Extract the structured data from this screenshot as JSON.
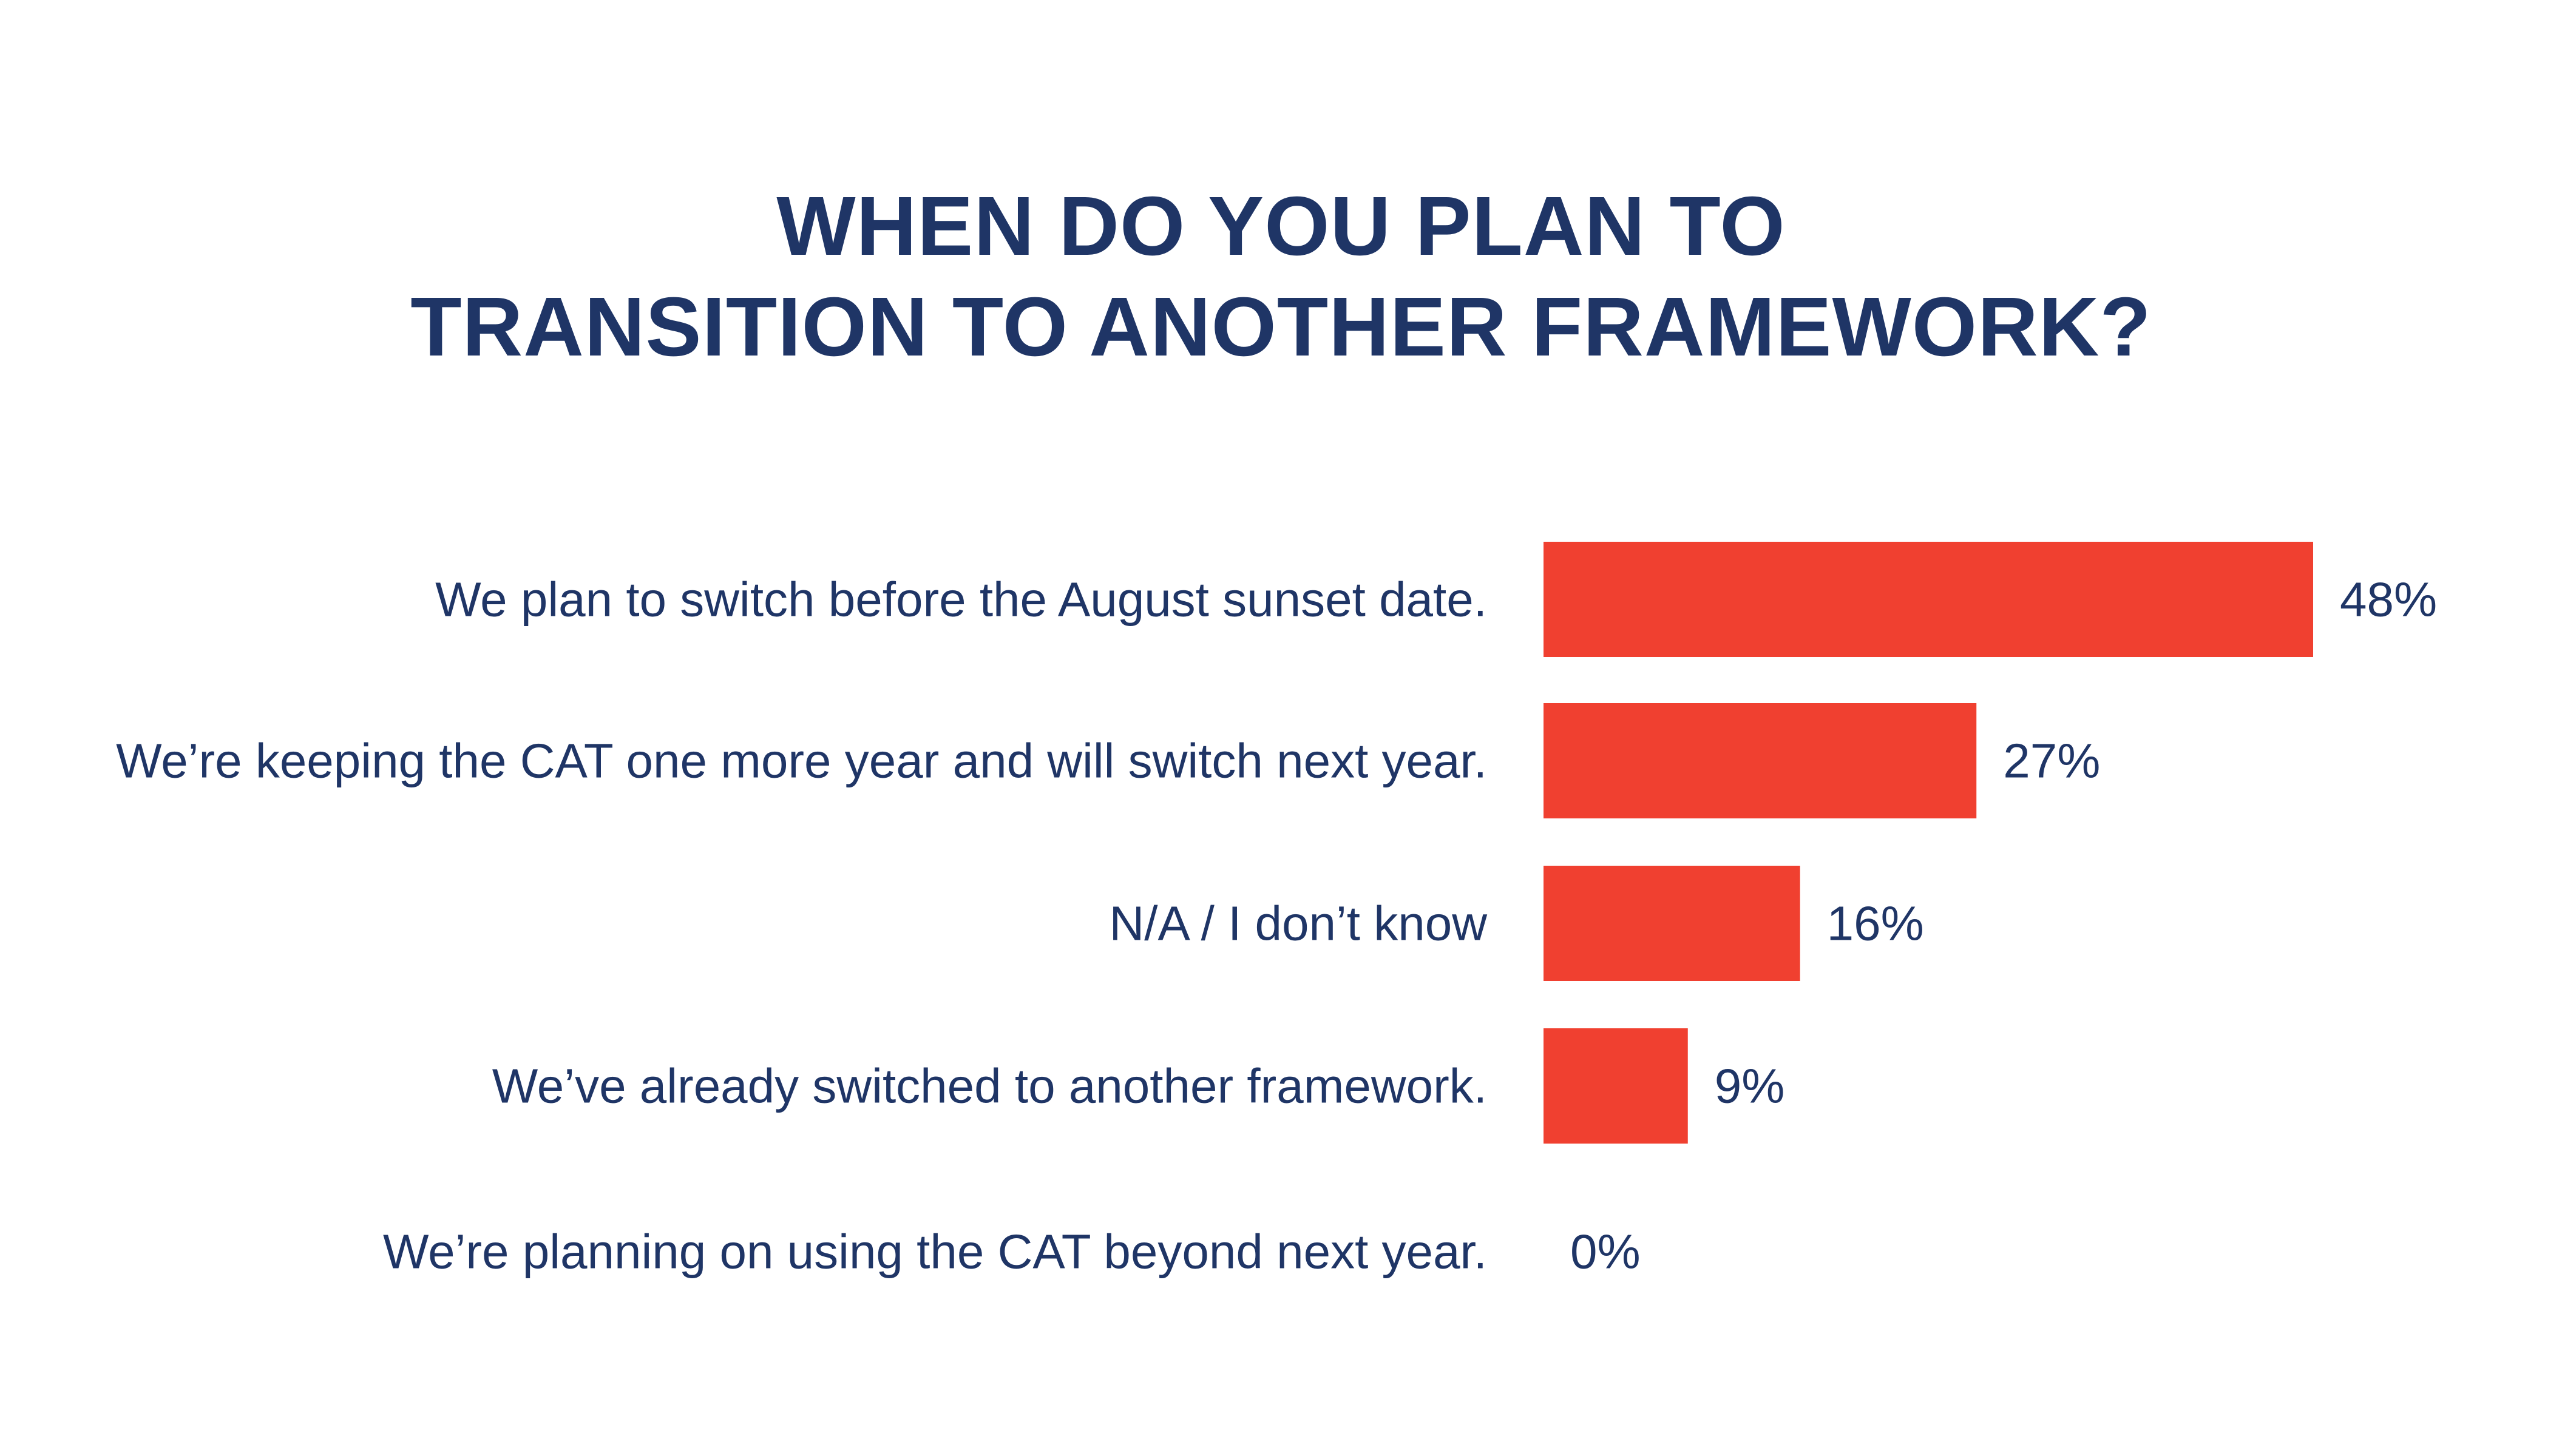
{
  "chart_data": {
    "type": "bar",
    "orientation": "horizontal",
    "title_lines": [
      "WHEN DO YOU PLAN TO",
      "TRANSITION TO ANOTHER FRAMEWORK?"
    ],
    "categories": [
      "We plan to switch before the August sunset date.",
      "We’re keeping the CAT one more year and will switch next year.",
      "N/A / I don’t know",
      "We’ve already switched to another framework.",
      "We’re planning on using the CAT beyond next year."
    ],
    "values": [
      48,
      27,
      16,
      9,
      0
    ],
    "value_labels": [
      "48%",
      "27%",
      "16%",
      "9%",
      "0%"
    ],
    "xlabel": "",
    "ylabel": "",
    "xlim": [
      0,
      48
    ],
    "grid": false,
    "legend": "none",
    "colors": {
      "bar": "#f04030",
      "text": "#1f3566",
      "background": "#ffffff"
    }
  }
}
